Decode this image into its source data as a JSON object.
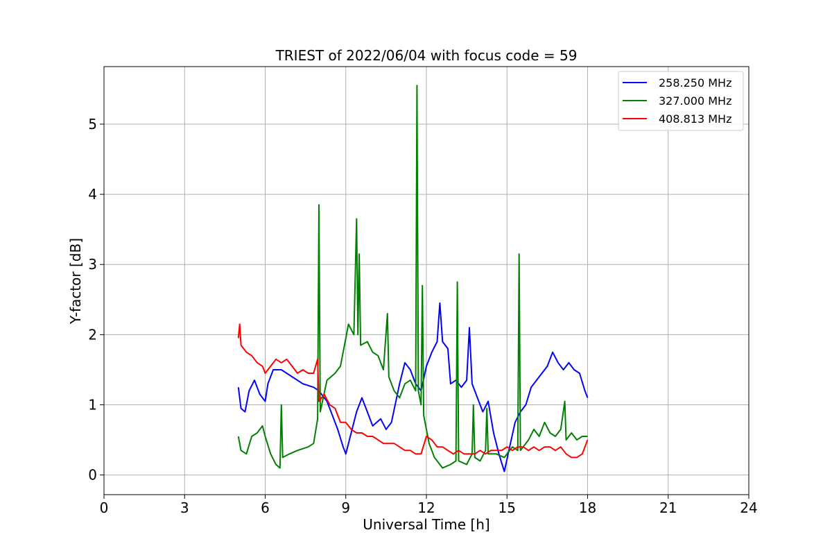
{
  "chart_data": {
    "type": "line",
    "title": "TRIEST of 2022/06/04 with focus code = 59",
    "xlabel": "Universal Time [h]",
    "ylabel": "Y-factor [dB]",
    "xlim": [
      0,
      24
    ],
    "ylim": [
      -0.28,
      5.82
    ],
    "xticks": [
      0,
      3,
      6,
      9,
      12,
      15,
      18,
      21,
      24
    ],
    "yticks": [
      0,
      1,
      2,
      3,
      4,
      5
    ],
    "grid": true,
    "legend_position": "top-right",
    "series": [
      {
        "name": "258.250 MHz",
        "color": "#0000ff",
        "points": [
          [
            5.0,
            1.25
          ],
          [
            5.1,
            0.95
          ],
          [
            5.25,
            0.9
          ],
          [
            5.4,
            1.2
          ],
          [
            5.6,
            1.35
          ],
          [
            5.8,
            1.15
          ],
          [
            6.0,
            1.05
          ],
          [
            6.1,
            1.3
          ],
          [
            6.3,
            1.5
          ],
          [
            6.6,
            1.5
          ],
          [
            7.0,
            1.4
          ],
          [
            7.4,
            1.3
          ],
          [
            7.8,
            1.25
          ],
          [
            8.0,
            1.2
          ],
          [
            8.3,
            1.05
          ],
          [
            8.5,
            0.85
          ],
          [
            8.7,
            0.65
          ],
          [
            8.9,
            0.4
          ],
          [
            9.0,
            0.3
          ],
          [
            9.2,
            0.6
          ],
          [
            9.4,
            0.9
          ],
          [
            9.6,
            1.1
          ],
          [
            9.8,
            0.9
          ],
          [
            10.0,
            0.7
          ],
          [
            10.3,
            0.8
          ],
          [
            10.5,
            0.65
          ],
          [
            10.7,
            0.75
          ],
          [
            11.0,
            1.3
          ],
          [
            11.2,
            1.6
          ],
          [
            11.4,
            1.5
          ],
          [
            11.6,
            1.3
          ],
          [
            11.8,
            1.2
          ],
          [
            12.0,
            1.55
          ],
          [
            12.2,
            1.75
          ],
          [
            12.4,
            1.9
          ],
          [
            12.5,
            2.45
          ],
          [
            12.6,
            1.9
          ],
          [
            12.8,
            1.8
          ],
          [
            12.9,
            1.3
          ],
          [
            13.1,
            1.35
          ],
          [
            13.3,
            1.25
          ],
          [
            13.5,
            1.35
          ],
          [
            13.6,
            2.1
          ],
          [
            13.7,
            1.3
          ],
          [
            13.9,
            1.1
          ],
          [
            14.1,
            0.9
          ],
          [
            14.3,
            1.05
          ],
          [
            14.5,
            0.6
          ],
          [
            14.7,
            0.3
          ],
          [
            14.9,
            0.05
          ],
          [
            15.1,
            0.4
          ],
          [
            15.3,
            0.75
          ],
          [
            15.5,
            0.9
          ],
          [
            15.7,
            1.0
          ],
          [
            15.9,
            1.25
          ],
          [
            16.2,
            1.4
          ],
          [
            16.5,
            1.55
          ],
          [
            16.7,
            1.75
          ],
          [
            16.9,
            1.6
          ],
          [
            17.1,
            1.5
          ],
          [
            17.3,
            1.6
          ],
          [
            17.5,
            1.5
          ],
          [
            17.7,
            1.45
          ],
          [
            17.9,
            1.2
          ],
          [
            18.0,
            1.1
          ]
        ]
      },
      {
        "name": "327.000 MHz",
        "color": "#008000",
        "points": [
          [
            5.0,
            0.55
          ],
          [
            5.1,
            0.35
          ],
          [
            5.3,
            0.3
          ],
          [
            5.5,
            0.55
          ],
          [
            5.7,
            0.6
          ],
          [
            5.9,
            0.7
          ],
          [
            6.0,
            0.55
          ],
          [
            6.2,
            0.3
          ],
          [
            6.4,
            0.15
          ],
          [
            6.55,
            0.1
          ],
          [
            6.6,
            1.0
          ],
          [
            6.65,
            0.25
          ],
          [
            6.9,
            0.3
          ],
          [
            7.2,
            0.35
          ],
          [
            7.6,
            0.4
          ],
          [
            7.8,
            0.45
          ],
          [
            7.95,
            0.8
          ],
          [
            8.0,
            3.85
          ],
          [
            8.05,
            0.9
          ],
          [
            8.3,
            1.35
          ],
          [
            8.6,
            1.45
          ],
          [
            8.8,
            1.55
          ],
          [
            9.0,
            1.95
          ],
          [
            9.1,
            2.15
          ],
          [
            9.3,
            2.0
          ],
          [
            9.4,
            3.65
          ],
          [
            9.45,
            2.0
          ],
          [
            9.5,
            3.15
          ],
          [
            9.55,
            1.85
          ],
          [
            9.8,
            1.9
          ],
          [
            10.0,
            1.75
          ],
          [
            10.2,
            1.7
          ],
          [
            10.4,
            1.5
          ],
          [
            10.55,
            2.3
          ],
          [
            10.6,
            1.4
          ],
          [
            10.8,
            1.2
          ],
          [
            11.0,
            1.1
          ],
          [
            11.2,
            1.3
          ],
          [
            11.4,
            1.35
          ],
          [
            11.6,
            1.2
          ],
          [
            11.65,
            5.55
          ],
          [
            11.7,
            1.2
          ],
          [
            11.8,
            1.0
          ],
          [
            11.85,
            2.7
          ],
          [
            11.9,
            0.85
          ],
          [
            12.1,
            0.45
          ],
          [
            12.3,
            0.25
          ],
          [
            12.6,
            0.1
          ],
          [
            12.9,
            0.15
          ],
          [
            13.1,
            0.2
          ],
          [
            13.15,
            2.75
          ],
          [
            13.2,
            0.2
          ],
          [
            13.5,
            0.15
          ],
          [
            13.7,
            0.3
          ],
          [
            13.75,
            1.0
          ],
          [
            13.8,
            0.25
          ],
          [
            14.0,
            0.2
          ],
          [
            14.2,
            0.35
          ],
          [
            14.25,
            0.95
          ],
          [
            14.3,
            0.3
          ],
          [
            14.6,
            0.3
          ],
          [
            14.9,
            0.25
          ],
          [
            15.2,
            0.4
          ],
          [
            15.4,
            0.35
          ],
          [
            15.45,
            3.15
          ],
          [
            15.5,
            0.35
          ],
          [
            15.8,
            0.5
          ],
          [
            16.0,
            0.65
          ],
          [
            16.2,
            0.55
          ],
          [
            16.4,
            0.75
          ],
          [
            16.6,
            0.6
          ],
          [
            16.8,
            0.55
          ],
          [
            17.0,
            0.65
          ],
          [
            17.15,
            1.05
          ],
          [
            17.2,
            0.5
          ],
          [
            17.4,
            0.6
          ],
          [
            17.6,
            0.5
          ],
          [
            17.8,
            0.55
          ],
          [
            18.0,
            0.55
          ]
        ]
      },
      {
        "name": "408.813 MHz",
        "color": "#ff0000",
        "points": [
          [
            5.0,
            1.95
          ],
          [
            5.05,
            2.15
          ],
          [
            5.1,
            1.85
          ],
          [
            5.3,
            1.75
          ],
          [
            5.5,
            1.7
          ],
          [
            5.7,
            1.6
          ],
          [
            5.9,
            1.55
          ],
          [
            6.0,
            1.45
          ],
          [
            6.2,
            1.55
          ],
          [
            6.4,
            1.65
          ],
          [
            6.6,
            1.6
          ],
          [
            6.8,
            1.65
          ],
          [
            7.0,
            1.55
          ],
          [
            7.2,
            1.45
          ],
          [
            7.4,
            1.5
          ],
          [
            7.6,
            1.45
          ],
          [
            7.8,
            1.45
          ],
          [
            7.95,
            1.65
          ],
          [
            8.0,
            1.05
          ],
          [
            8.2,
            1.15
          ],
          [
            8.4,
            1.0
          ],
          [
            8.6,
            0.95
          ],
          [
            8.8,
            0.75
          ],
          [
            9.0,
            0.75
          ],
          [
            9.2,
            0.65
          ],
          [
            9.4,
            0.6
          ],
          [
            9.6,
            0.6
          ],
          [
            9.8,
            0.55
          ],
          [
            10.0,
            0.55
          ],
          [
            10.2,
            0.5
          ],
          [
            10.4,
            0.45
          ],
          [
            10.6,
            0.45
          ],
          [
            10.8,
            0.45
          ],
          [
            11.0,
            0.4
          ],
          [
            11.2,
            0.35
          ],
          [
            11.4,
            0.35
          ],
          [
            11.6,
            0.3
          ],
          [
            11.8,
            0.3
          ],
          [
            12.0,
            0.55
          ],
          [
            12.2,
            0.5
          ],
          [
            12.4,
            0.4
          ],
          [
            12.6,
            0.4
          ],
          [
            12.8,
            0.35
          ],
          [
            13.0,
            0.3
          ],
          [
            13.2,
            0.35
          ],
          [
            13.4,
            0.3
          ],
          [
            13.6,
            0.3
          ],
          [
            13.8,
            0.3
          ],
          [
            14.0,
            0.35
          ],
          [
            14.2,
            0.3
          ],
          [
            14.4,
            0.35
          ],
          [
            14.6,
            0.35
          ],
          [
            14.8,
            0.35
          ],
          [
            15.0,
            0.4
          ],
          [
            15.2,
            0.35
          ],
          [
            15.4,
            0.4
          ],
          [
            15.6,
            0.4
          ],
          [
            15.8,
            0.35
          ],
          [
            16.0,
            0.4
          ],
          [
            16.2,
            0.35
          ],
          [
            16.4,
            0.4
          ],
          [
            16.6,
            0.4
          ],
          [
            16.8,
            0.35
          ],
          [
            17.0,
            0.4
          ],
          [
            17.2,
            0.3
          ],
          [
            17.4,
            0.25
          ],
          [
            17.6,
            0.25
          ],
          [
            17.8,
            0.3
          ],
          [
            18.0,
            0.5
          ]
        ]
      }
    ]
  }
}
